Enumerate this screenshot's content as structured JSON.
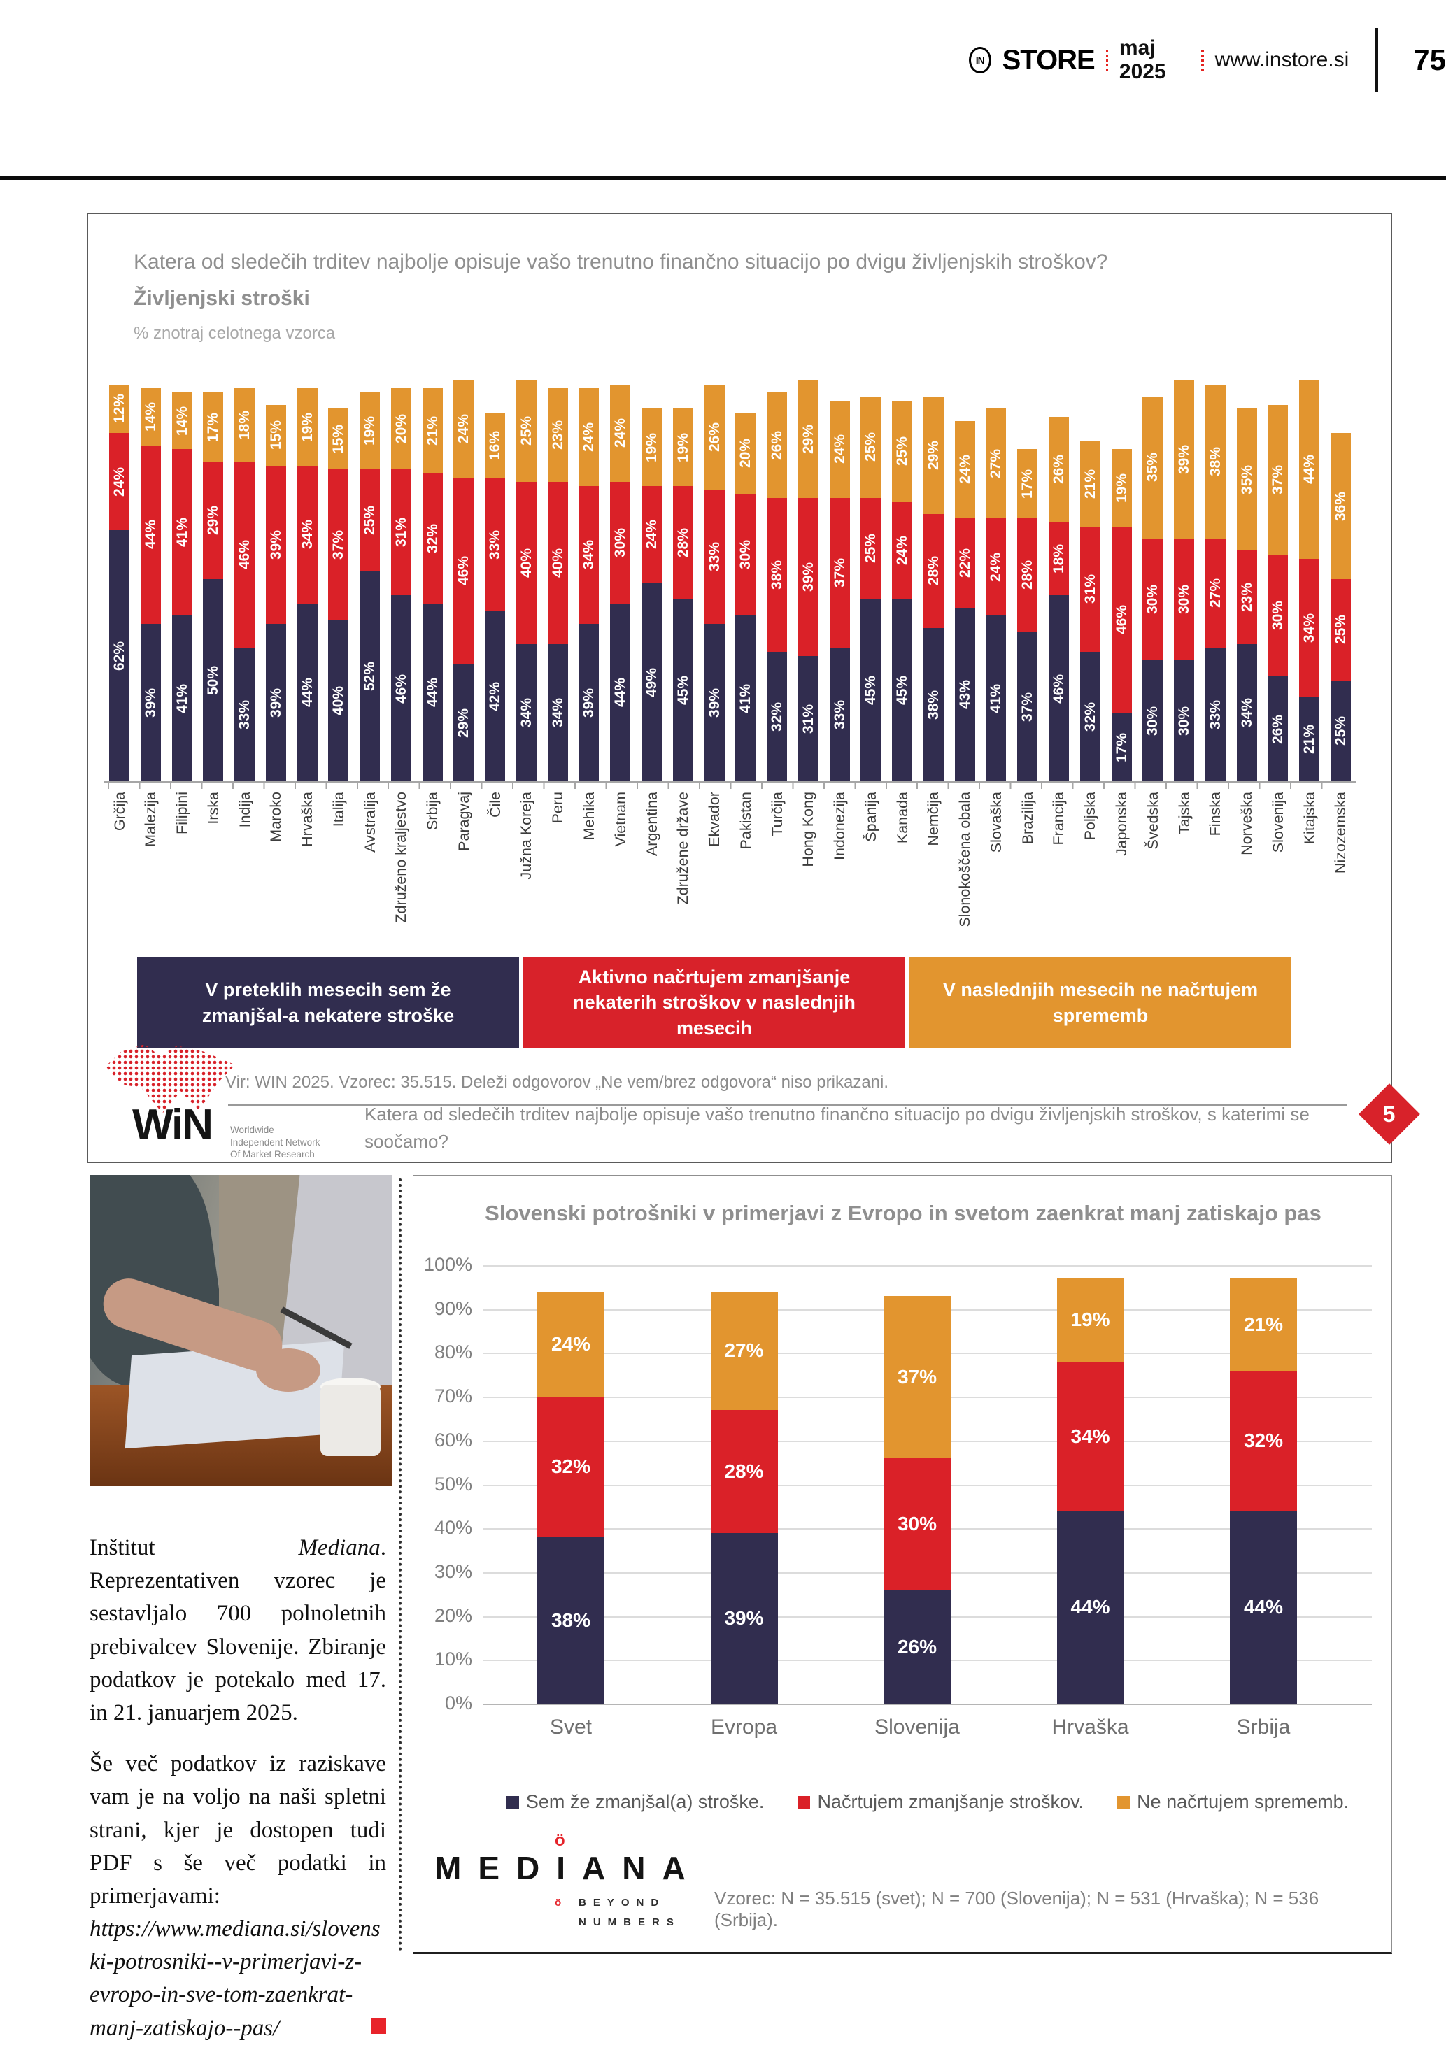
{
  "header": {
    "logo_text": "IN",
    "brand": "STORE",
    "issue": "maj 2025",
    "site": "www.instore.si",
    "page_number": "75"
  },
  "top_chart": {
    "title": "Katera od sledečih trditev najbolje opisuje vašo trenutno finančno situacijo po dvigu življenjskih stroškov?",
    "subtitle": "Življenjski stroški",
    "note": "% znotraj celotnega vzorca",
    "legend": [
      {
        "label": "V preteklih mesecih sem že zmanjšal-a nekatere stroške",
        "color": "#312d4f"
      },
      {
        "label": "Aktivno načrtujem zmanjšanje nekaterih stroškov v naslednjih mesecih",
        "color": "#d8222a"
      },
      {
        "label": "V naslednjih mesecih ne načrtujem sprememb",
        "color": "#e2952f"
      }
    ],
    "source": "Vir: WIN 2025. Vzorec: 35.515. Deleži odgovorov „Ne vem/brez odgovora“ niso prikazani.",
    "badge": "5",
    "badge_color": "#d8222a",
    "win": {
      "wordmark": "WiN",
      "tagline": [
        "Worldwide",
        "Independent Network",
        "Of Market Research"
      ]
    },
    "footnote": "Katera od sledečih trditev najbolje opisuje vašo trenutno finančno situacijo po dvigu življenjskih stroškov, s katerimi se soočamo?"
  },
  "chart_data": [
    {
      "type": "bar",
      "stacked": true,
      "title": "Življenjski stroški — % znotraj celotnega vzorca",
      "unit": "%",
      "ylim": [
        0,
        100
      ],
      "grid": false,
      "legend_position": "bottom",
      "categories": [
        "Grčija",
        "Malezija",
        "Filipini",
        "Irska",
        "Indija",
        "Maroko",
        "Hrvaška",
        "Italija",
        "Avstralija",
        "Združeno kraljestvo",
        "Srbija",
        "Paragvaj",
        "Čile",
        "Južna Koreja",
        "Peru",
        "Mehika",
        "Vietnam",
        "Argentina",
        "Združene države",
        "Ekvador",
        "Pakistan",
        "Turčija",
        "Hong Kong",
        "Indonezija",
        "Španija",
        "Kanada",
        "Nemčija",
        "Slonokoščena obala",
        "Slovaška",
        "Brazilija",
        "Francija",
        "Poljska",
        "Japonska",
        "Švedska",
        "Tajska",
        "Finska",
        "Norveška",
        "Slovenija",
        "Kitajska",
        "Nizozemska"
      ],
      "series": [
        {
          "name": "V preteklih mesecih sem že zmanjšal-a nekatere stroške",
          "color": "#312d4f",
          "values": [
            62,
            39,
            41,
            50,
            33,
            39,
            44,
            40,
            52,
            46,
            44,
            29,
            42,
            34,
            34,
            39,
            44,
            49,
            45,
            39,
            41,
            32,
            31,
            33,
            45,
            45,
            38,
            43,
            41,
            37,
            46,
            32,
            17,
            30,
            30,
            33,
            34,
            26,
            21,
            25
          ]
        },
        {
          "name": "Aktivno načrtujem zmanjšanje nekaterih stroškov v naslednjih mesecih",
          "color": "#da2128",
          "values": [
            24,
            44,
            41,
            29,
            46,
            39,
            34,
            37,
            25,
            31,
            32,
            46,
            33,
            40,
            40,
            34,
            30,
            24,
            28,
            33,
            30,
            38,
            39,
            37,
            25,
            24,
            28,
            22,
            24,
            28,
            18,
            31,
            46,
            30,
            30,
            27,
            23,
            30,
            34,
            25
          ]
        },
        {
          "name": "V naslednjih mesecih ne načrtujem sprememb",
          "color": "#e2952f",
          "values": [
            12,
            14,
            14,
            17,
            18,
            15,
            19,
            15,
            19,
            20,
            21,
            24,
            16,
            25,
            23,
            24,
            24,
            19,
            19,
            26,
            20,
            26,
            29,
            24,
            25,
            25,
            29,
            24,
            27,
            17,
            26,
            21,
            19,
            35,
            39,
            38,
            35,
            37,
            44,
            36
          ]
        }
      ]
    },
    {
      "type": "bar",
      "stacked": true,
      "title": "Slovenski potrošniki v primerjavi z Evropo in svetom zaenkrat manj zatiskajo pas",
      "unit": "%",
      "ylim": [
        0,
        100
      ],
      "grid": true,
      "legend_position": "bottom",
      "y_ticks": [
        "0%",
        "10%",
        "20%",
        "30%",
        "40%",
        "50%",
        "60%",
        "70%",
        "80%",
        "90%",
        "100%"
      ],
      "categories": [
        "Svet",
        "Evropa",
        "Slovenija",
        "Hrvaška",
        "Srbija"
      ],
      "series": [
        {
          "name": "Sem že zmanjšal(a) stroške.",
          "color": "#312d4f",
          "values": [
            38,
            39,
            26,
            44,
            44
          ]
        },
        {
          "name": "Načrtujem zmanjšanje stroškov.",
          "color": "#da2128",
          "values": [
            32,
            28,
            30,
            34,
            32
          ]
        },
        {
          "name": "Ne načrtujem sprememb.",
          "color": "#e2952f",
          "values": [
            24,
            27,
            37,
            19,
            21
          ]
        }
      ],
      "caption": "Vzorec: N = 35.515 (svet); N = 700 (Slovenija); N = 531 (Hrvaška); N = 536 (Srbija)."
    }
  ],
  "article": {
    "para1_lead": "Inštitut ",
    "para1_brand": "Mediana",
    "para1_rest": ". Reprezentativen vzorec je sestavljalo 700 polnoletnih prebivalcev Slovenije. Zbiranje podatkov je potekalo med 17. in 21. januarjem 2025.",
    "para2": "Še več podatkov iz raziskave vam je na voljo na naši spletni strani, kjer je dostopen tudi PDF s še več podatki in primerjavami: ",
    "url": "https://www.mediana.si/slovenski-potrosniki--v-primerjavi-z-evropo-in-sve-tom-zaenkrat-manj-zatiskajo--pas/"
  },
  "mediana": {
    "umlaut": "ö",
    "wordmark": "MEDIANA",
    "beyond": "BEYOND",
    "numbers": "NUMBERS"
  }
}
